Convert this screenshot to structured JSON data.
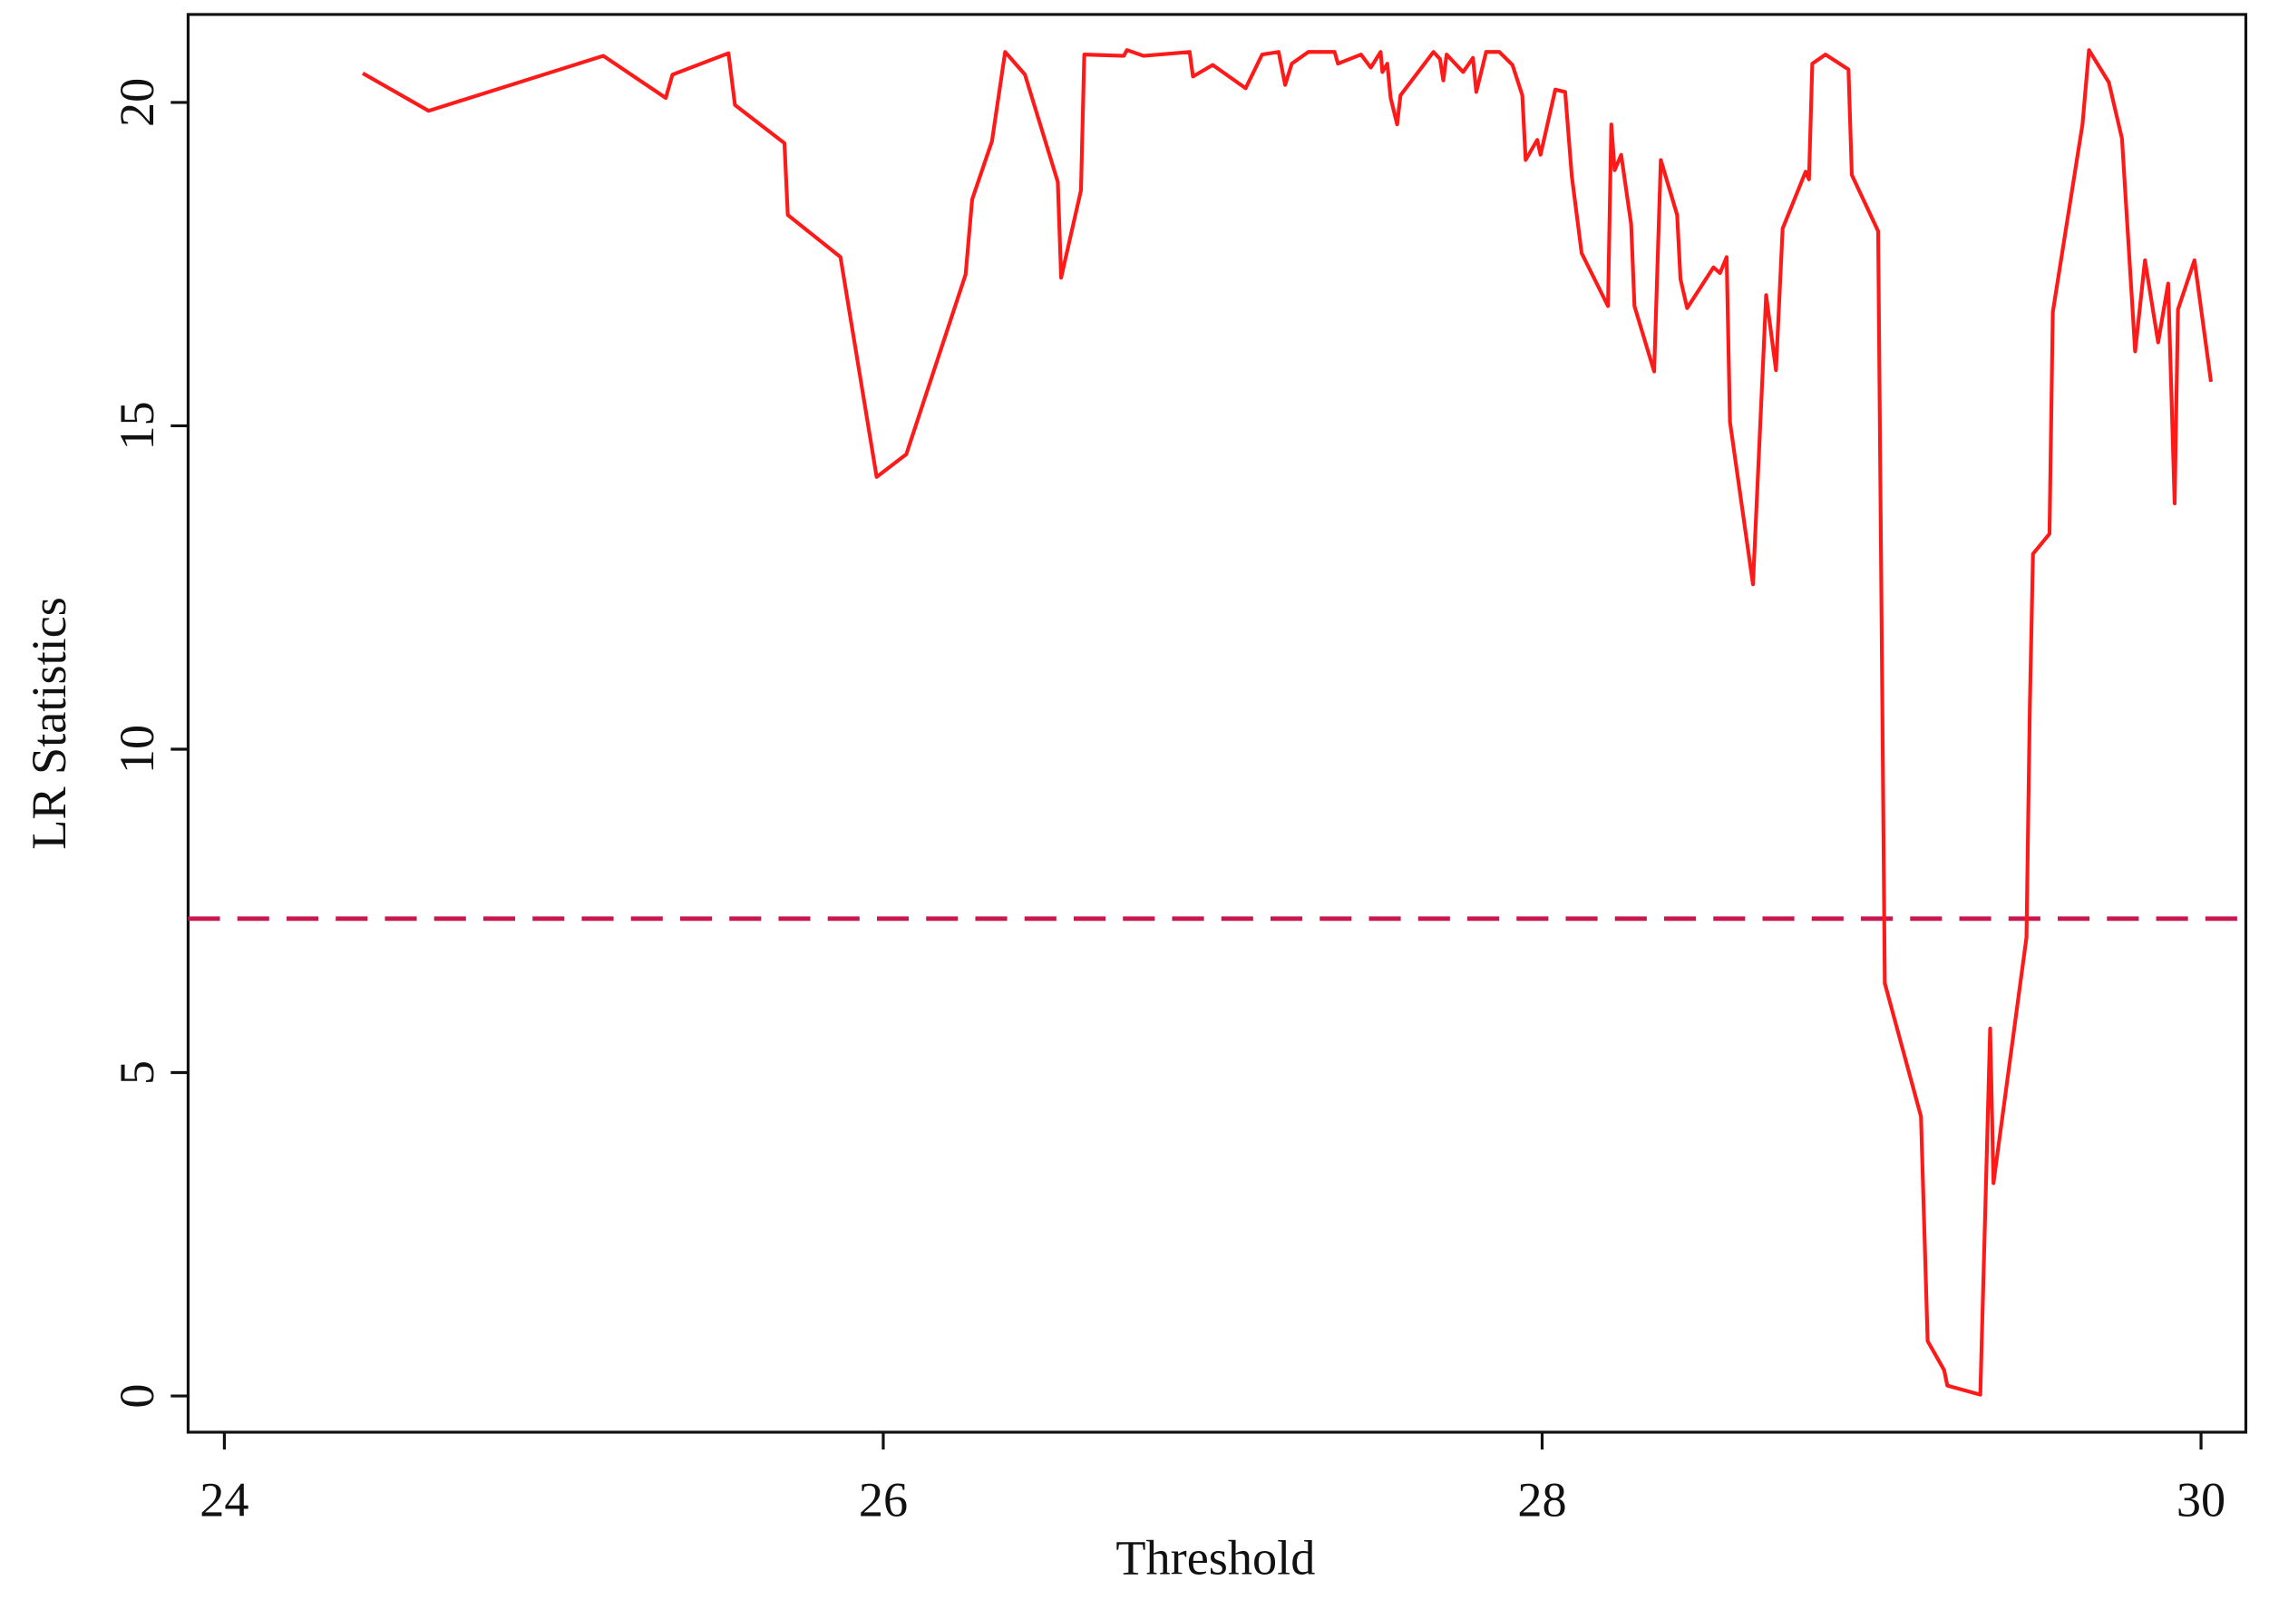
{
  "chart_data": {
    "type": "line",
    "xlabel": "Threshold",
    "ylabel": "LR Statistics",
    "xlim": [
      23.89,
      30.136
    ],
    "ylim": [
      -0.56,
      21.36
    ],
    "xticks": [
      24,
      26,
      28,
      30
    ],
    "yticks": [
      0,
      5,
      10,
      15,
      20
    ],
    "reference_line": {
      "value": 7.38,
      "color": "#c8174f",
      "style": "dashed"
    },
    "series": [
      {
        "color": "#ff1a1a",
        "x": [
          24.42,
          24.62,
          25.15,
          25.34,
          25.36,
          25.53,
          25.55,
          25.7,
          25.71,
          25.87,
          25.98,
          26.07,
          26.25,
          26.27,
          26.33,
          26.37,
          26.43,
          26.53,
          26.54,
          26.6,
          26.61,
          26.73,
          26.74,
          26.79,
          26.93,
          26.94,
          27.0,
          27.1,
          27.15,
          27.2,
          27.22,
          27.24,
          27.29,
          27.37,
          27.38,
          27.45,
          27.48,
          27.51,
          27.515,
          27.53,
          27.54,
          27.56,
          27.57,
          27.67,
          27.69,
          27.7,
          27.71,
          27.76,
          27.79,
          27.8,
          27.83,
          27.87,
          27.91,
          27.94,
          27.95,
          27.985,
          27.995,
          28.04,
          28.07,
          28.09,
          28.12,
          28.2,
          28.21,
          28.22,
          28.24,
          28.27,
          28.28,
          28.34,
          28.36,
          28.41,
          28.42,
          28.44,
          28.52,
          28.54,
          28.56,
          28.57,
          28.64,
          28.68,
          28.71,
          28.73,
          28.8,
          28.81,
          28.82,
          28.86,
          28.93,
          28.94,
          29.02,
          29.04,
          29.15,
          29.17,
          29.22,
          29.23,
          29.33,
          29.36,
          29.37,
          29.47,
          29.48,
          29.49,
          29.54,
          29.55,
          29.64,
          29.66,
          29.72,
          29.76,
          29.8,
          29.83,
          29.87,
          29.9,
          29.92,
          29.93,
          29.98,
          30.03
        ],
        "values": [
          20.45,
          19.87,
          20.72,
          20.07,
          20.43,
          20.76,
          19.96,
          19.37,
          18.26,
          17.61,
          14.21,
          14.56,
          17.34,
          18.5,
          19.4,
          20.78,
          20.43,
          18.77,
          17.29,
          18.64,
          20.74,
          20.72,
          20.81,
          20.72,
          20.78,
          20.4,
          20.58,
          20.22,
          20.74,
          20.78,
          20.27,
          20.6,
          20.78,
          20.78,
          20.6,
          20.74,
          20.54,
          20.78,
          20.47,
          20.6,
          20.07,
          19.66,
          20.11,
          20.78,
          20.67,
          20.34,
          20.74,
          20.47,
          20.69,
          20.16,
          20.78,
          20.78,
          20.58,
          20.11,
          19.11,
          19.42,
          19.19,
          20.2,
          20.16,
          18.86,
          17.67,
          16.85,
          19.66,
          18.95,
          19.19,
          18.12,
          16.85,
          15.84,
          19.11,
          18.26,
          17.27,
          16.82,
          17.45,
          17.36,
          17.61,
          15.06,
          12.55,
          17.02,
          15.86,
          18.05,
          18.93,
          18.81,
          20.6,
          20.74,
          20.51,
          18.88,
          18.01,
          6.38,
          4.32,
          0.85,
          0.4,
          0.16,
          0.02,
          5.68,
          3.29,
          7.09,
          10.63,
          13.02,
          13.33,
          16.76,
          19.66,
          20.81,
          20.31,
          19.44,
          16.15,
          17.56,
          16.29,
          17.2,
          13.8,
          16.8,
          17.56,
          15.68
        ]
      }
    ]
  }
}
